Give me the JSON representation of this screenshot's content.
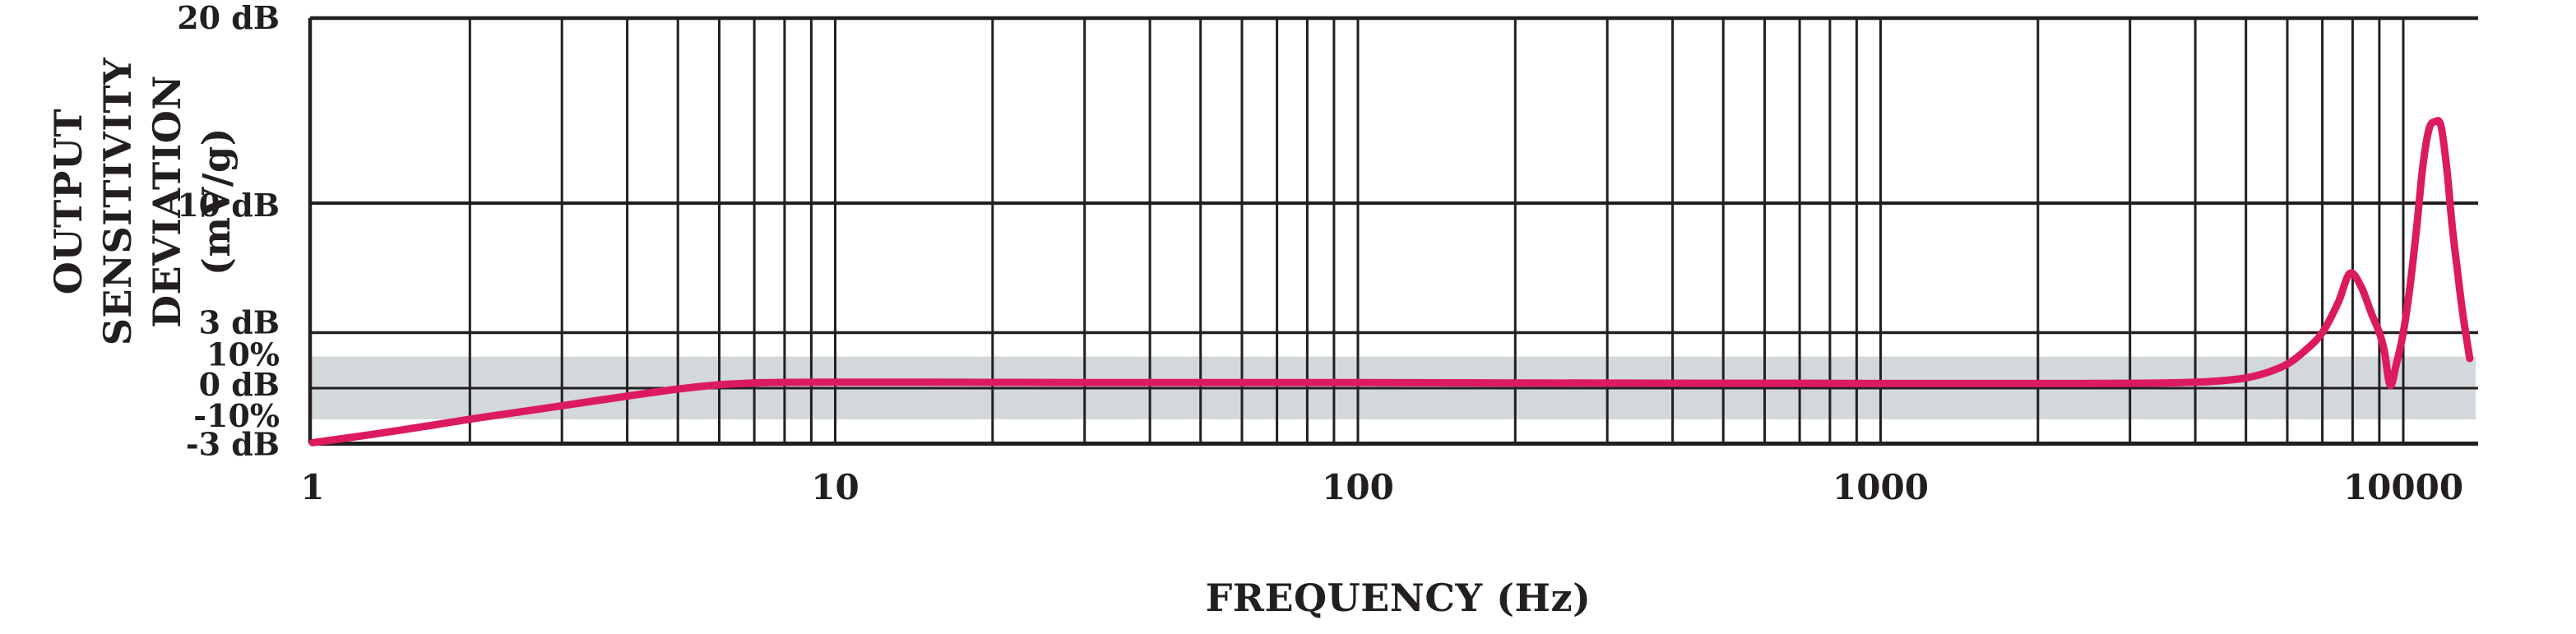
{
  "chart_data": {
    "type": "line",
    "title": "",
    "xlabel": "FREQUENCY (Hz)",
    "ylabel_line1": "OUTPUT SENSITIVITY",
    "ylabel_line2": "DEVIATION (mV/g)",
    "x_scale": "log",
    "x_range": [
      1,
      13900
    ],
    "y_range_db": [
      -3,
      20
    ],
    "grid": true,
    "axis_color": "#231f20",
    "x_ticks": [
      {
        "value": 1,
        "label": "1"
      },
      {
        "value": 10,
        "label": "10"
      },
      {
        "value": 100,
        "label": "100"
      },
      {
        "value": 1000,
        "label": "1000"
      },
      {
        "value": 10000,
        "label": "10000"
      }
    ],
    "x_minor_multiples": [
      2,
      3,
      4,
      5,
      6,
      7,
      8,
      9
    ],
    "x_decades": [
      1,
      10,
      100,
      1000
    ],
    "y_ticks": [
      {
        "db": 20,
        "label": "20 dB"
      },
      {
        "db": 10,
        "label": "10 dB"
      },
      {
        "db": 3,
        "label": "3 dB"
      },
      {
        "db": 1.71,
        "label": "10%"
      },
      {
        "db": 0,
        "label": "0 dB"
      },
      {
        "db": -1.69,
        "label": "-10%"
      },
      {
        "db": -3,
        "label": "-3 dB"
      }
    ],
    "y_gridlines_db": [
      10,
      3,
      0
    ],
    "tolerance_band": {
      "top_db": 1.71,
      "bottom_db": -1.69,
      "color": "#d3d8db"
    },
    "series": [
      {
        "name": "output-sensitivity-deviation",
        "color": "#dc1a5f",
        "points": [
          [
            1,
            -2.95
          ],
          [
            1.3,
            -2.5
          ],
          [
            1.7,
            -2.0
          ],
          [
            2,
            -1.68
          ],
          [
            2.5,
            -1.28
          ],
          [
            3,
            -0.95
          ],
          [
            4,
            -0.43
          ],
          [
            5,
            -0.05
          ],
          [
            6,
            0.18
          ],
          [
            7,
            0.28
          ],
          [
            8,
            0.31
          ],
          [
            10,
            0.32
          ],
          [
            15,
            0.32
          ],
          [
            20,
            0.31
          ],
          [
            30,
            0.3
          ],
          [
            50,
            0.3
          ],
          [
            70,
            0.3
          ],
          [
            100,
            0.3
          ],
          [
            150,
            0.29
          ],
          [
            200,
            0.28
          ],
          [
            300,
            0.27
          ],
          [
            500,
            0.26
          ],
          [
            700,
            0.26
          ],
          [
            1000,
            0.25
          ],
          [
            1500,
            0.25
          ],
          [
            2000,
            0.25
          ],
          [
            3000,
            0.26
          ],
          [
            4000,
            0.32
          ],
          [
            4500,
            0.4
          ],
          [
            5000,
            0.55
          ],
          [
            5500,
            0.85
          ],
          [
            6000,
            1.3
          ],
          [
            6500,
            2.05
          ],
          [
            7000,
            3.0
          ],
          [
            7500,
            4.6
          ],
          [
            7900,
            6.2
          ],
          [
            8300,
            5.5
          ],
          [
            8700,
            4.0
          ],
          [
            9000,
            3.0
          ],
          [
            9200,
            2.0
          ],
          [
            9440,
            0.15
          ],
          [
            9700,
            1.3
          ],
          [
            10000,
            3.0
          ],
          [
            10300,
            5.5
          ],
          [
            10600,
            8.6
          ],
          [
            10900,
            12.0
          ],
          [
            11200,
            14.0
          ],
          [
            11500,
            14.4
          ],
          [
            11800,
            14.2
          ],
          [
            12100,
            12.0
          ],
          [
            12400,
            8.8
          ],
          [
            12700,
            6.3
          ],
          [
            13000,
            4.0
          ],
          [
            13400,
            1.6
          ]
        ]
      }
    ]
  }
}
